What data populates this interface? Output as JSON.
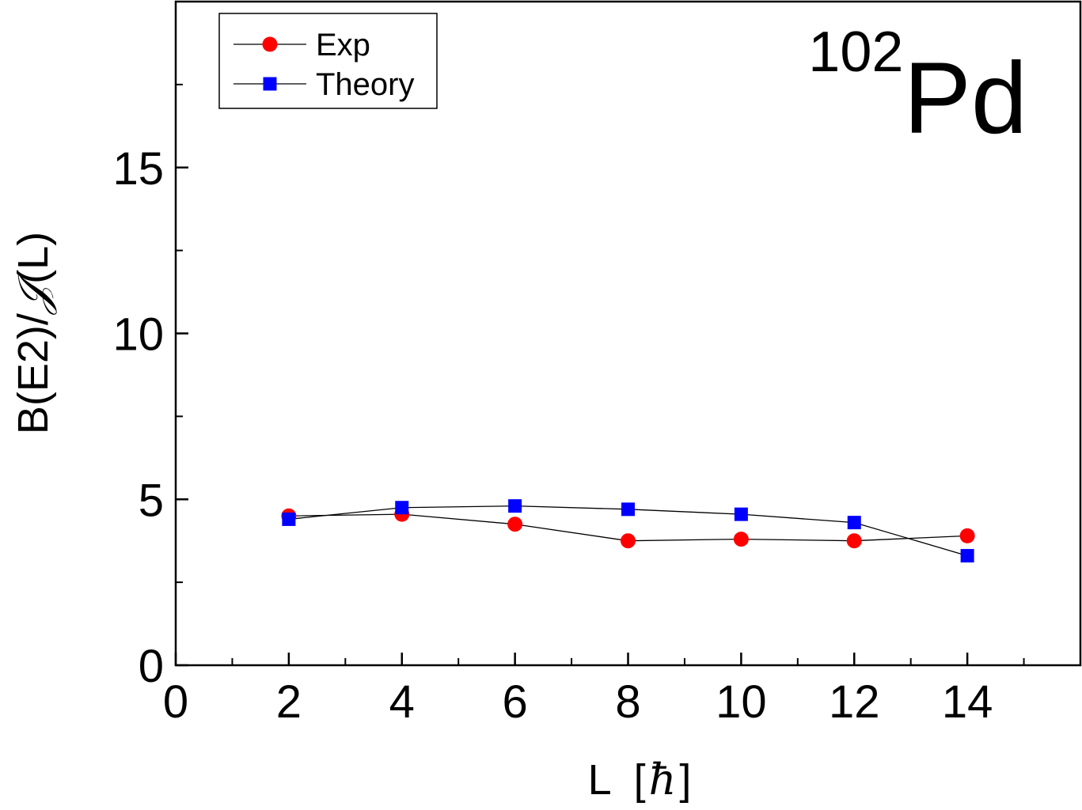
{
  "chart_data": {
    "type": "line",
    "annotation": {
      "mass_number": "102",
      "element": "Pd"
    },
    "xlabel": {
      "text": "L",
      "unit_open": "[",
      "unit_symbol": "ħ",
      "unit_close": "]"
    },
    "ylabel": {
      "prefix": "B(E2)/",
      "symbol": "𝒥",
      "suffix": "(L)"
    },
    "xlim": [
      0,
      16
    ],
    "ylim": [
      0,
      20
    ],
    "x_ticks": [
      0,
      2,
      4,
      6,
      8,
      10,
      12,
      14
    ],
    "x_tick_labels": [
      "0",
      "2",
      "4",
      "6",
      "8",
      "10",
      "12",
      "14"
    ],
    "y_ticks": [
      0,
      5,
      10,
      15
    ],
    "y_tick_labels": [
      "0",
      "5",
      "10",
      "15"
    ],
    "x_minor_step": 1,
    "y_minor_step": 2.5,
    "grid": false,
    "legend_position": "top-left",
    "series": [
      {
        "name": "Exp",
        "marker": "circle",
        "color": "#ff0000",
        "x": [
          2,
          4,
          6,
          8,
          10,
          12,
          14
        ],
        "y": [
          4.5,
          4.55,
          4.25,
          3.75,
          3.8,
          3.75,
          3.9
        ]
      },
      {
        "name": "Theory",
        "marker": "square",
        "color": "#0000ff",
        "x": [
          2,
          4,
          6,
          8,
          10,
          12,
          14
        ],
        "y": [
          4.4,
          4.75,
          4.8,
          4.7,
          4.55,
          4.3,
          3.3
        ]
      }
    ]
  }
}
